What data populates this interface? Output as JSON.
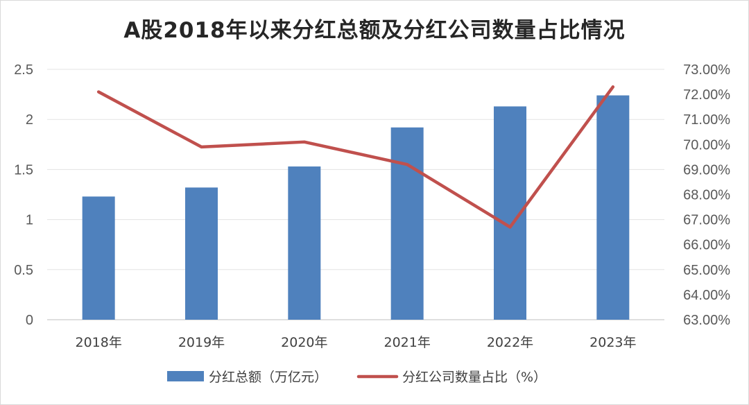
{
  "chart_data": {
    "type": "bar+line",
    "title": "A股2018年以来分红总额及分红公司数量占比情况",
    "categories": [
      "2018年",
      "2019年",
      "2020年",
      "2021年",
      "2022年",
      "2023年"
    ],
    "series": [
      {
        "name": "分红总额（万亿元）",
        "type": "bar",
        "axis": "left",
        "color": "#4f81bd",
        "values": [
          1.23,
          1.32,
          1.53,
          1.92,
          2.13,
          2.24
        ]
      },
      {
        "name": "分红公司数量占比（%）",
        "type": "line",
        "axis": "right",
        "color": "#c0504d",
        "values": [
          72.1,
          69.9,
          70.1,
          69.2,
          66.7,
          72.3
        ]
      }
    ],
    "left_axis": {
      "ylim": [
        0,
        2.5
      ],
      "ticks": [
        0,
        0.5,
        1,
        1.5,
        2,
        2.5
      ],
      "tick_labels": [
        "0",
        "0.5",
        "1",
        "1.5",
        "2",
        "2.5"
      ]
    },
    "right_axis": {
      "ylim": [
        63,
        73
      ],
      "ticks": [
        63,
        64,
        65,
        66,
        67,
        68,
        69,
        70,
        71,
        72,
        73
      ],
      "tick_labels": [
        "63.00%",
        "64.00%",
        "65.00%",
        "66.00%",
        "67.00%",
        "68.00%",
        "69.00%",
        "70.00%",
        "71.00%",
        "72.00%",
        "73.00%"
      ]
    },
    "grid": true,
    "legend_position": "bottom"
  }
}
